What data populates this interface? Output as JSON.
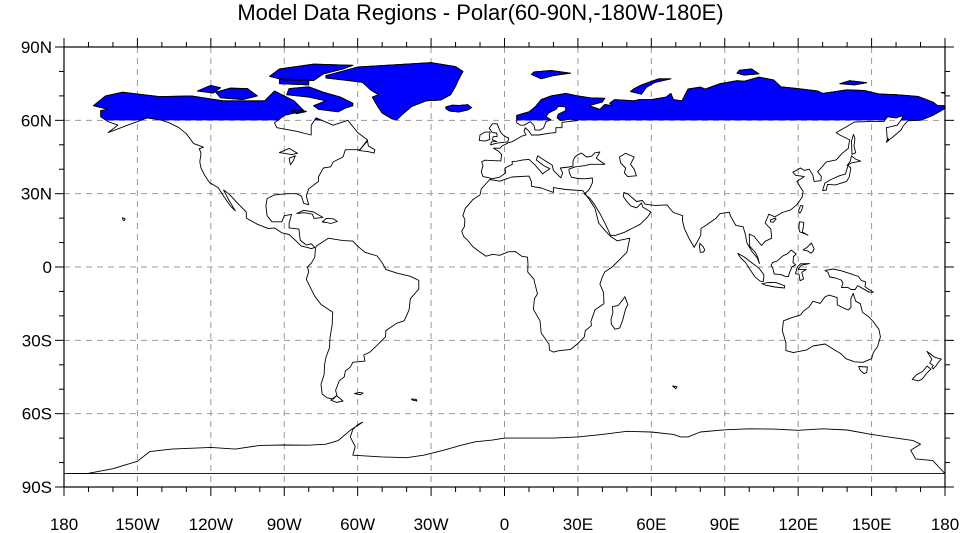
{
  "title": "Model Data Regions - Polar(60-90N,-180W-180E)",
  "map": {
    "projection": "cylindrical-equidistant",
    "lon_range": [
      -180,
      180
    ],
    "lat_range": [
      -90,
      90
    ],
    "highlight_region": {
      "lat_min": 60,
      "lat_max": 90,
      "lon_min": -180,
      "lon_max": 180
    },
    "highlight_color": "#0000ff",
    "coast_color": "#000000",
    "grid": true,
    "grid_color": "#9a9a9a"
  },
  "axes": {
    "lon_ticks": [
      {
        "value": -180,
        "label": "180"
      },
      {
        "value": -150,
        "label": "150W"
      },
      {
        "value": -120,
        "label": "120W"
      },
      {
        "value": -90,
        "label": "90W"
      },
      {
        "value": -60,
        "label": "60W"
      },
      {
        "value": -30,
        "label": "30W"
      },
      {
        "value": 0,
        "label": "0"
      },
      {
        "value": 30,
        "label": "30E"
      },
      {
        "value": 60,
        "label": "60E"
      },
      {
        "value": 90,
        "label": "90E"
      },
      {
        "value": 120,
        "label": "120E"
      },
      {
        "value": 150,
        "label": "150E"
      },
      {
        "value": 180,
        "label": "180"
      }
    ],
    "lat_ticks": [
      {
        "value": 90,
        "label": "90N"
      },
      {
        "value": 60,
        "label": "60N"
      },
      {
        "value": 30,
        "label": "30N"
      },
      {
        "value": 0,
        "label": "0"
      },
      {
        "value": -30,
        "label": "30S"
      },
      {
        "value": -60,
        "label": "60S"
      },
      {
        "value": -90,
        "label": "90S"
      }
    ]
  }
}
